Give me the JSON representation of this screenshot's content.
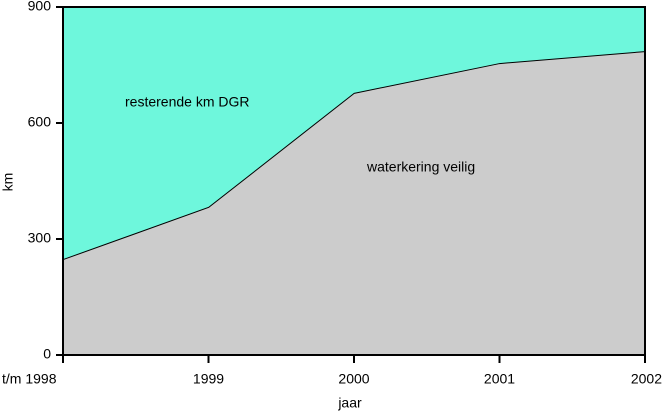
{
  "chart_data": {
    "type": "stacked-area",
    "categories": [
      "t/m 1998",
      "1999",
      "2000",
      "2001",
      "2002"
    ],
    "series": [
      {
        "name": "waterkering veilig",
        "color": "#cccccc",
        "values": [
          248,
          383,
          678,
          755,
          786
        ]
      },
      {
        "name": "resterende km DGR",
        "color": "#6ef7dc",
        "values": [
          652,
          517,
          222,
          145,
          114
        ]
      }
    ],
    "ylim": [
      0,
      900
    ],
    "yticks": [
      0,
      300,
      600,
      900
    ],
    "xlabel": "jaar",
    "ylabel": "km"
  }
}
